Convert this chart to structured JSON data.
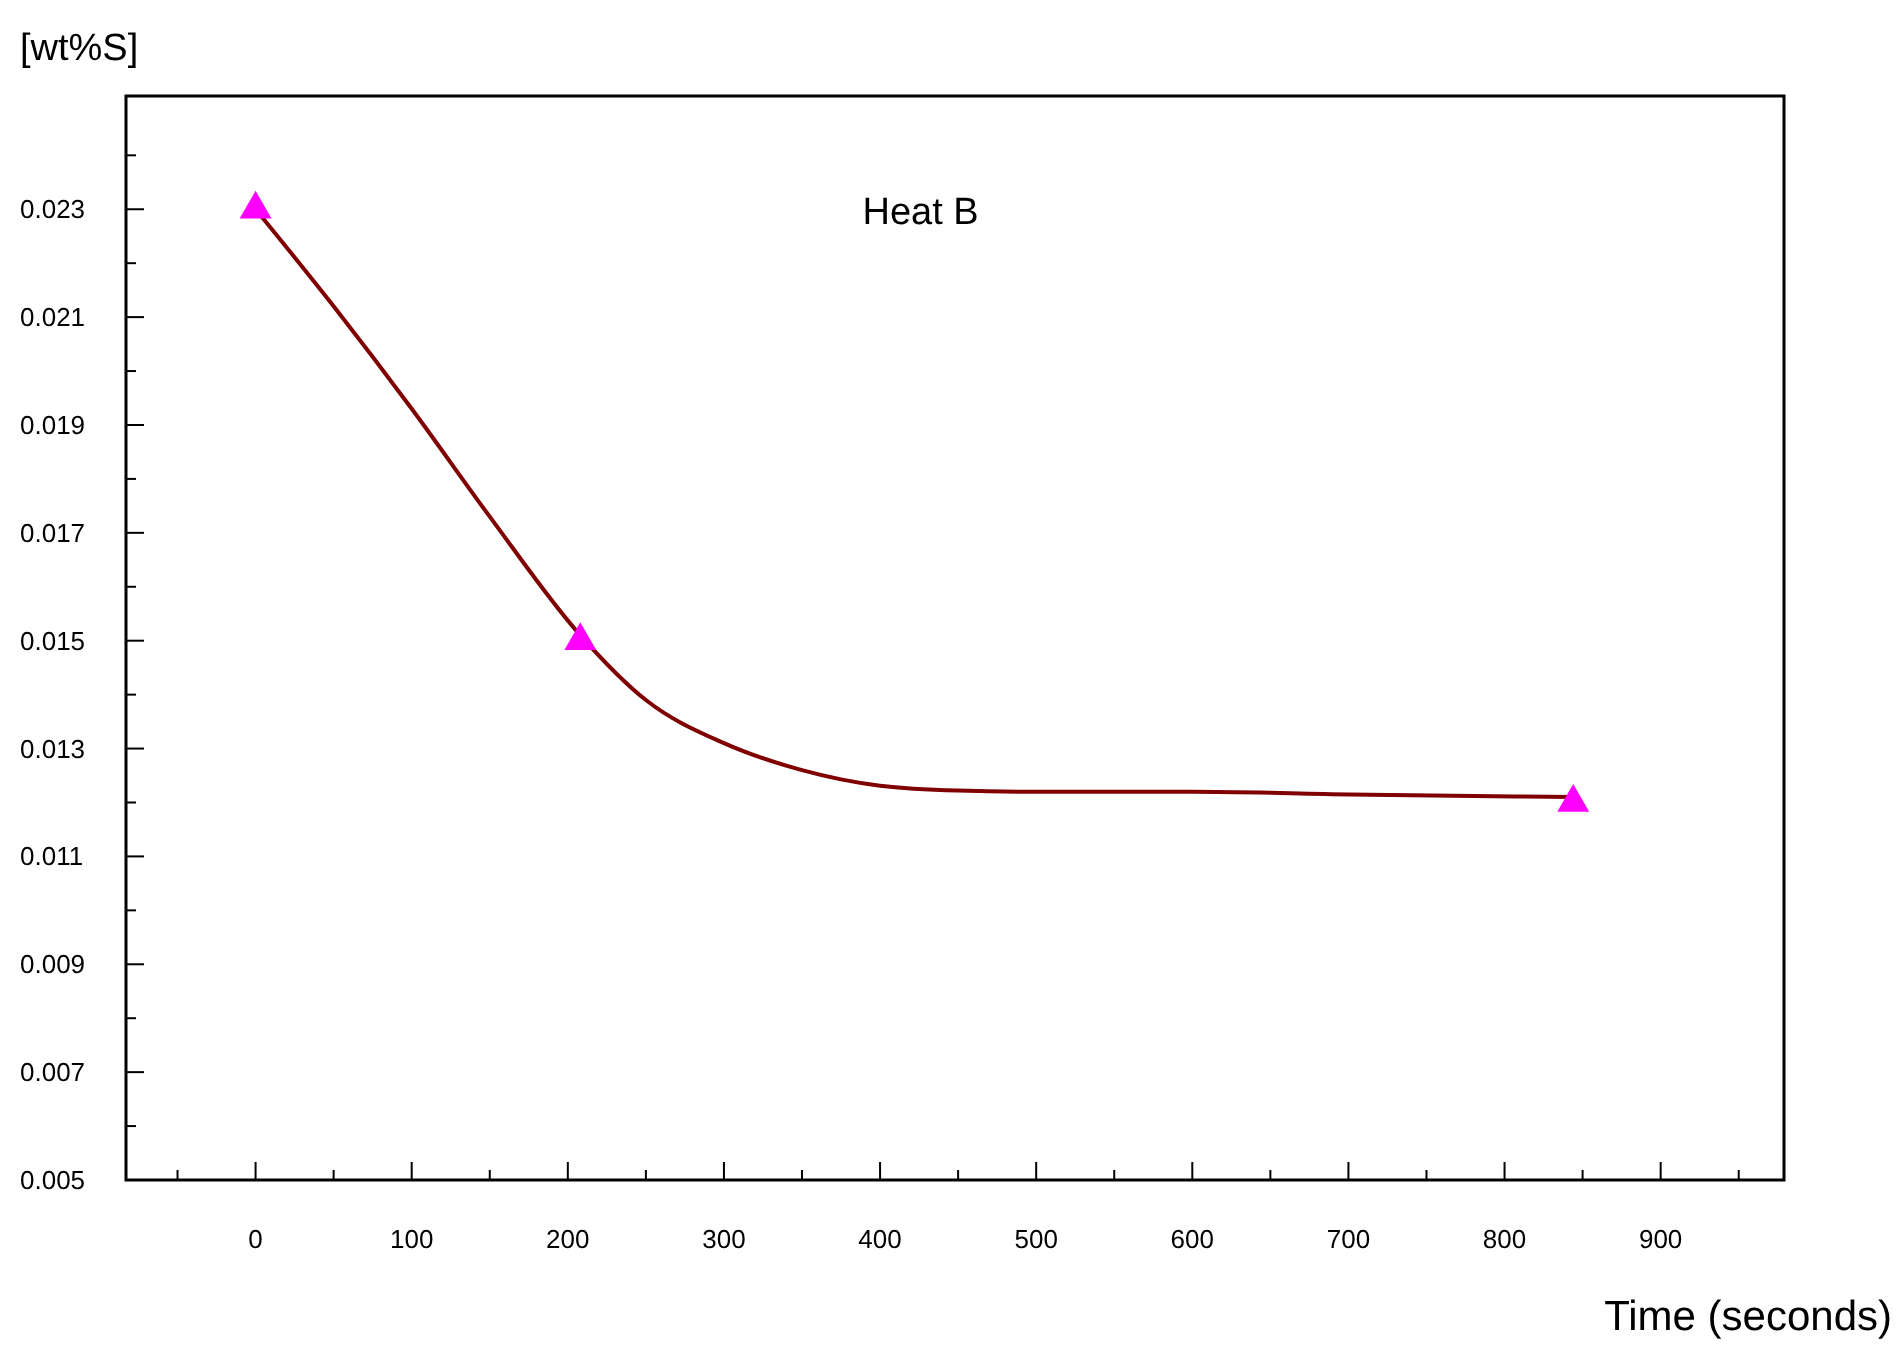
{
  "chart_data": {
    "type": "scatter",
    "xlabel": "Time (seconds)",
    "ylabel": "[wt%S]",
    "annotations": [
      "Heat B"
    ],
    "xlim": [
      -83,
      979
    ],
    "ylim": [
      0.005,
      0.0251
    ],
    "xticks": [
      {
        "value": -50,
        "label": null
      },
      0,
      {
        "value": 50,
        "label": null
      },
      100,
      {
        "value": 150,
        "label": null
      },
      200,
      {
        "value": 250,
        "label": null
      },
      300,
      {
        "value": 350,
        "label": null
      },
      400,
      {
        "value": 450,
        "label": null
      },
      500,
      {
        "value": 550,
        "label": null
      },
      600,
      {
        "value": 650,
        "label": null
      },
      700,
      {
        "value": 750,
        "label": null
      },
      800,
      {
        "value": 850,
        "label": null
      },
      900,
      {
        "value": 950,
        "label": null
      }
    ],
    "yticks": [
      0.005,
      {
        "value": 0.006,
        "label": null
      },
      0.007,
      {
        "value": 0.008,
        "label": null
      },
      0.009,
      {
        "value": 0.01,
        "label": null
      },
      0.011,
      {
        "value": 0.012,
        "label": null
      },
      0.013,
      {
        "value": 0.014,
        "label": null
      },
      0.015,
      {
        "value": 0.016,
        "label": null
      },
      0.017,
      {
        "value": 0.018,
        "label": null
      },
      0.019,
      {
        "value": 0.02,
        "label": null
      },
      0.021,
      {
        "value": 0.022,
        "label": null
      },
      0.023,
      {
        "value": 0.024,
        "label": null
      }
    ],
    "grid": false,
    "series": [
      {
        "type": "line",
        "color": "#800000",
        "marker": "none",
        "line_style": "solid",
        "x": [
          0,
          50,
          100,
          150,
          208,
          250,
          300,
          350,
          400,
          450,
          500,
          600,
          700,
          843
        ],
        "values": [
          0.023,
          0.0212,
          0.0193,
          0.0173,
          0.0151,
          0.0139,
          0.0131,
          0.0126,
          0.01231,
          0.01222,
          0.0122,
          0.0122,
          0.01215,
          0.0121
        ]
      },
      {
        "color": "#ff00ff",
        "marker": "triangle",
        "x": [
          0,
          208,
          844
        ],
        "values": [
          0.023,
          0.015,
          0.012
        ]
      }
    ]
  }
}
